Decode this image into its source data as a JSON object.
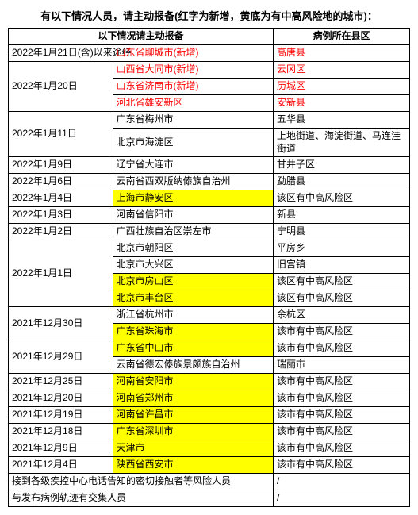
{
  "title": "有以下情况人员，请主动报备(红字为新增，黄底为有中高风险地的城市)：",
  "header": {
    "col1": "以下情况请主动报备",
    "col2": "病例所在县区"
  },
  "rows": [
    {
      "date": "2022年1月21日(含)以来途经",
      "dateSpan": 1,
      "city": "山东省聊城市(新增)",
      "cityRed": true,
      "district": "高唐县",
      "distRed": true
    },
    {
      "date": "2022年1月20日",
      "dateSpan": 3,
      "city": "山西省大同市(新增)",
      "cityRed": true,
      "district": "云冈区",
      "distRed": true
    },
    {
      "city": "山东省济南市(新增)",
      "cityRed": true,
      "district": "历城区",
      "distRed": true
    },
    {
      "city": "河北省雄安新区",
      "cityRed": true,
      "district": "安新县",
      "distRed": true
    },
    {
      "date": "2022年1月11日",
      "dateSpan": 2,
      "city": "广东省梅州市",
      "district": "五华县"
    },
    {
      "city": "北京市海淀区",
      "district": "上地街道、海淀街道、马连洼街道"
    },
    {
      "date": "2022年1月9日",
      "dateSpan": 1,
      "city": "辽宁省大连市",
      "district": "甘井子区"
    },
    {
      "date": "2022年1月6日",
      "dateSpan": 1,
      "city": "云南省西双版纳傣族自治州",
      "district": "勐腊县"
    },
    {
      "date": "2022年1月4日",
      "dateSpan": 1,
      "city": "上海市静安区",
      "cityHl": true,
      "district": "该区有中高风险区"
    },
    {
      "date": "2022年1月3日",
      "dateSpan": 1,
      "city": "河南省信阳市",
      "district": "新县"
    },
    {
      "date": "2022年1月2日",
      "dateSpan": 1,
      "city": "广西壮族自治区崇左市",
      "district": "宁明县"
    },
    {
      "date": "2022年1月1日",
      "dateSpan": 4,
      "city": "北京市朝阳区",
      "district": "平房乡"
    },
    {
      "city": "北京市大兴区",
      "district": "旧宫镇"
    },
    {
      "city": "北京市房山区",
      "cityHl": true,
      "district": "该区有中高风险区"
    },
    {
      "city": "北京市丰台区",
      "cityHl": true,
      "district": "该区有中高风险区"
    },
    {
      "date": "2021年12月30日",
      "dateSpan": 2,
      "city": "浙江省杭州市",
      "district": "余杭区"
    },
    {
      "city": "广东省珠海市",
      "cityHl": true,
      "district": "该市有中高风险区"
    },
    {
      "date": "2021年12月29日",
      "dateSpan": 2,
      "city": "广东省中山市",
      "cityHl": true,
      "district": "该市有中高风险区"
    },
    {
      "city": "云南省德宏傣族景颇族自治州",
      "district": "瑞丽市"
    },
    {
      "date": "2021年12月25日",
      "dateSpan": 1,
      "city": "河南省安阳市",
      "cityHl": true,
      "district": "该市有中高风险区"
    },
    {
      "date": "2021年12月20日",
      "dateSpan": 1,
      "city": "河南省郑州市",
      "cityHl": true,
      "district": "该市有中高风险区"
    },
    {
      "date": "2021年12月19日",
      "dateSpan": 1,
      "city": "河南省许昌市",
      "cityHl": true,
      "district": "该市有中高风险区"
    },
    {
      "date": "2021年12月18日",
      "dateSpan": 1,
      "city": "广东省深圳市",
      "cityHl": true,
      "district": "该市有中高风险区"
    },
    {
      "date": "2021年12月9日",
      "dateSpan": 1,
      "city": "天津市",
      "cityHl": true,
      "district": "该市有中高风险区"
    },
    {
      "date": "2021年12月4日",
      "dateSpan": 1,
      "city": "陕西省西安市",
      "cityHl": true,
      "district": "该市有中高风险区"
    }
  ],
  "footer": [
    {
      "text": "接到各级疾控中心电话告知的密切接触者等风险人员",
      "right": "/"
    },
    {
      "text": "与发布病例轨迹有交集人员",
      "right": "/"
    }
  ]
}
